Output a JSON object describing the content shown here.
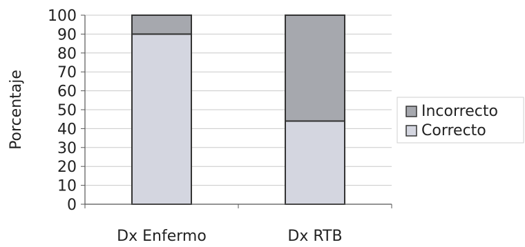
{
  "chart_data": {
    "type": "bar",
    "stacked": true,
    "categories": [
      "Dx Enfermo",
      "Dx RTB"
    ],
    "series": [
      {
        "name": "Correcto",
        "values": [
          90,
          44
        ],
        "color": "#d4d6e0"
      },
      {
        "name": "Incorrecto",
        "values": [
          10,
          56
        ],
        "color": "#a6a8ae"
      }
    ],
    "ylabel": "Porcentaje",
    "ylim": [
      0,
      100
    ],
    "yticks": [
      0,
      10,
      20,
      30,
      40,
      50,
      60,
      70,
      80,
      90,
      100
    ],
    "grid": true,
    "legend_position": "right",
    "legend_order": [
      "Incorrecto",
      "Correcto"
    ]
  }
}
